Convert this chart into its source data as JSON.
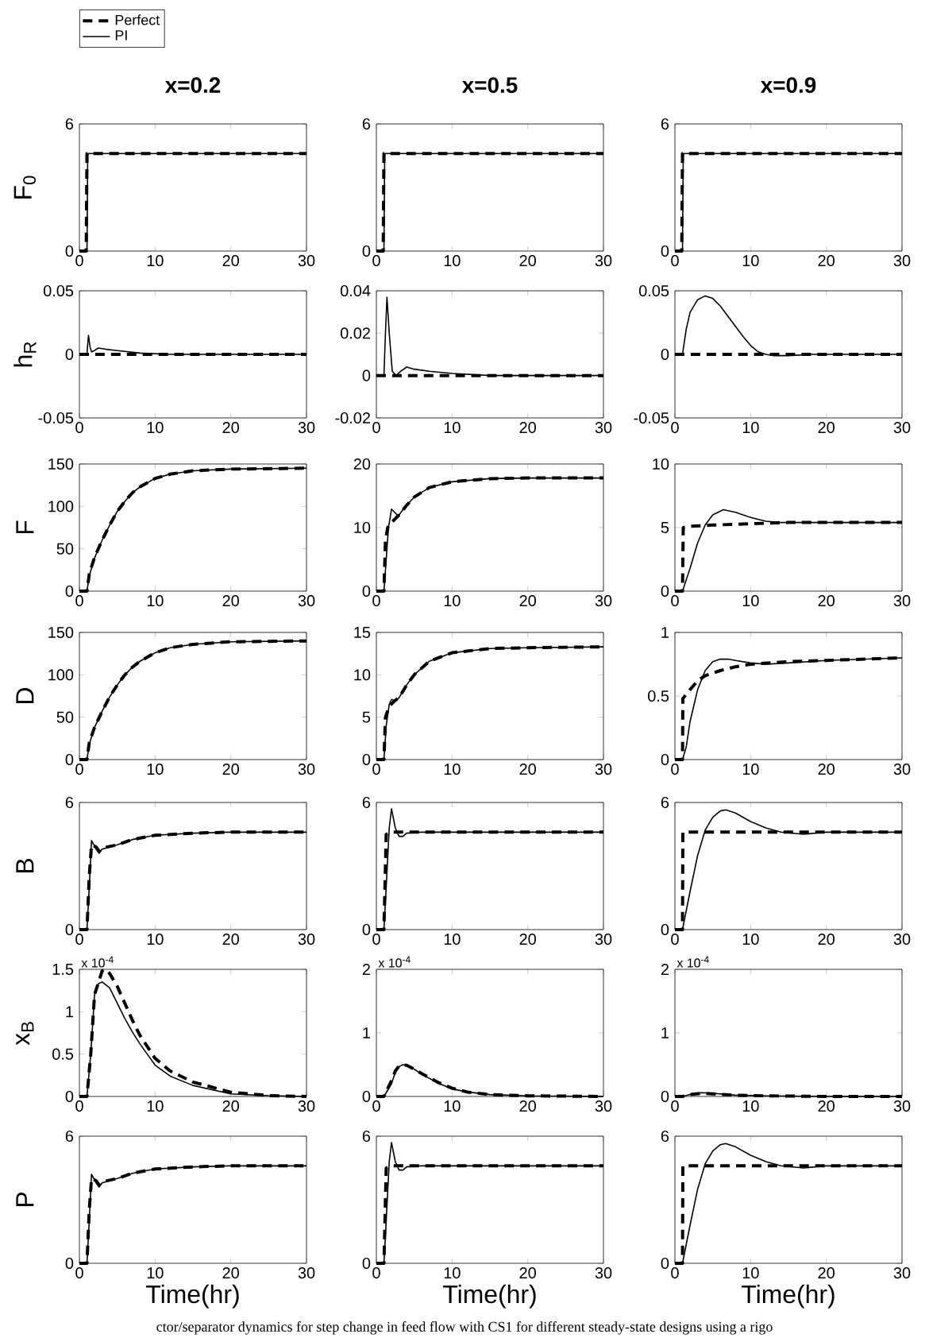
{
  "chart_data": [
    {
      "type": "line",
      "title": "x=0.2",
      "ylabel": "F$_{0}$",
      "xlim": [
        0,
        30
      ],
      "xticks": [
        0,
        10,
        20,
        30
      ],
      "ylim": [
        0,
        6
      ],
      "yticks": [
        0,
        6
      ],
      "legend": "top left",
      "series": [
        {
          "name": "Perfect",
          "color": "#000000",
          "line_style": "dashed",
          "x": [
            0,
            0.9,
            1,
            30
          ],
          "values": [
            0,
            0,
            4.6,
            4.6
          ]
        },
        {
          "name": "PI",
          "color": "#000000",
          "line_style": "solid",
          "x": [
            0,
            1,
            1.1,
            30
          ],
          "values": [
            0,
            0,
            4.6,
            4.6
          ]
        }
      ]
    },
    {
      "type": "line",
      "title": "x=0.5",
      "xlim": [
        0,
        30
      ],
      "xticks": [
        0,
        10,
        20,
        30
      ],
      "ylim": [
        0,
        6
      ],
      "yticks": [
        0,
        6
      ],
      "series": [
        {
          "color": "#000000",
          "line_style": "dashed",
          "x": [
            0,
            0.9,
            1,
            30
          ],
          "values": [
            0,
            0,
            4.6,
            4.6
          ]
        },
        {
          "color": "#000000",
          "line_style": "solid",
          "x": [
            0,
            1,
            1.1,
            30
          ],
          "values": [
            0,
            0,
            4.6,
            4.6
          ]
        }
      ]
    },
    {
      "type": "line",
      "title": "x=0.9",
      "xlim": [
        0,
        30
      ],
      "xticks": [
        0,
        10,
        20,
        30
      ],
      "ylim": [
        0,
        6
      ],
      "yticks": [
        0,
        6
      ],
      "series": [
        {
          "color": "#000000",
          "line_style": "dashed",
          "x": [
            0,
            0.9,
            1,
            30
          ],
          "values": [
            0,
            0,
            4.6,
            4.6
          ]
        },
        {
          "color": "#000000",
          "line_style": "solid",
          "x": [
            0,
            1,
            1.1,
            30
          ],
          "values": [
            0,
            0,
            4.6,
            4.6
          ]
        }
      ]
    },
    {
      "type": "line",
      "ylabel": "h$_{R}$",
      "xlim": [
        0,
        30
      ],
      "xticks": [
        0,
        10,
        20,
        30
      ],
      "ylim": [
        -0.05,
        0.05
      ],
      "yticks": [
        -0.05,
        0,
        0.05
      ],
      "series": [
        {
          "color": "#000000",
          "line_style": "dashed",
          "x": [
            0,
            30
          ],
          "values": [
            0,
            0
          ]
        },
        {
          "color": "#000000",
          "line_style": "solid",
          "x": [
            0,
            1,
            1.1,
            1.2,
            1.4,
            1.6,
            2,
            2.5,
            3.5,
            5,
            8,
            12,
            30
          ],
          "values": [
            0,
            0,
            0.008,
            0.015,
            0.006,
            0.002,
            0.003,
            0.005,
            0.004,
            0.003,
            0.001,
            0,
            0
          ]
        }
      ]
    },
    {
      "type": "line",
      "xlim": [
        0,
        30
      ],
      "xticks": [
        0,
        10,
        20,
        30
      ],
      "ylim": [
        -0.02,
        0.04
      ],
      "yticks": [
        -0.02,
        0,
        0.02,
        0.04
      ],
      "series": [
        {
          "color": "#000000",
          "line_style": "dashed",
          "x": [
            0,
            30
          ],
          "values": [
            0,
            0
          ]
        },
        {
          "color": "#000000",
          "line_style": "solid",
          "x": [
            0,
            1,
            1.2,
            1.4,
            1.7,
            2.1,
            2.6,
            3.2,
            4,
            5,
            7,
            10,
            15,
            30
          ],
          "values": [
            0,
            0,
            0.02,
            0.037,
            0.02,
            0.002,
            0,
            0.002,
            0.004,
            0.003,
            0.002,
            0.001,
            0,
            0
          ]
        }
      ]
    },
    {
      "type": "line",
      "xlim": [
        0,
        30
      ],
      "xticks": [
        0,
        10,
        20,
        30
      ],
      "ylim": [
        -0.05,
        0.05
      ],
      "yticks": [
        -0.05,
        0,
        0.05
      ],
      "series": [
        {
          "color": "#000000",
          "line_style": "dashed",
          "x": [
            0,
            30
          ],
          "values": [
            0,
            0
          ]
        },
        {
          "color": "#000000",
          "line_style": "solid",
          "x": [
            0,
            1,
            1.5,
            2,
            3,
            4,
            5,
            6,
            7,
            8,
            9,
            10,
            11,
            12,
            13,
            15,
            18,
            30
          ],
          "values": [
            0,
            0,
            0.02,
            0.033,
            0.043,
            0.046,
            0.044,
            0.038,
            0.03,
            0.022,
            0.014,
            0.007,
            0.002,
            0,
            -0.001,
            -0.001,
            0,
            0
          ]
        }
      ]
    },
    {
      "type": "line",
      "ylabel": "F",
      "xlim": [
        0,
        30
      ],
      "xticks": [
        0,
        10,
        20,
        30
      ],
      "ylim": [
        0,
        150
      ],
      "yticks": [
        0,
        50,
        100,
        150
      ],
      "series": [
        {
          "color": "#000000",
          "line_style": "dashed",
          "x": [
            0,
            1,
            1.3,
            2,
            3,
            4,
            5,
            6,
            7,
            8,
            10,
            12,
            15,
            20,
            30
          ],
          "values": [
            0,
            0,
            20,
            40,
            60,
            78,
            94,
            106,
            116,
            123,
            133,
            138,
            142,
            144,
            145
          ]
        },
        {
          "color": "#000000",
          "line_style": "solid",
          "x": [
            0,
            1,
            1.3,
            2,
            3,
            4,
            5,
            6,
            7,
            8,
            10,
            12,
            15,
            20,
            30
          ],
          "values": [
            0,
            0,
            18,
            39,
            60,
            78,
            94,
            106,
            116,
            123,
            133,
            138,
            142,
            144,
            145
          ]
        }
      ]
    },
    {
      "type": "line",
      "xlim": [
        0,
        30
      ],
      "xticks": [
        0,
        10,
        20,
        30
      ],
      "ylim": [
        0,
        20
      ],
      "yticks": [
        0,
        10,
        20
      ],
      "series": [
        {
          "color": "#000000",
          "line_style": "dashed",
          "x": [
            0,
            1,
            1.2,
            1.5,
            2,
            3,
            4,
            5,
            7,
            10,
            15,
            20,
            30
          ],
          "values": [
            0,
            0,
            8,
            10,
            10.8,
            12,
            13.5,
            14.8,
            16.3,
            17.2,
            17.7,
            17.8,
            17.8
          ]
        },
        {
          "color": "#000000",
          "line_style": "solid",
          "x": [
            0,
            1,
            1.3,
            1.6,
            2,
            2.9,
            3.5,
            5,
            7,
            10,
            15,
            20,
            30
          ],
          "values": [
            0,
            0,
            5,
            10,
            12.9,
            11.8,
            12.8,
            14.8,
            16.3,
            17.2,
            17.7,
            17.8,
            17.8
          ]
        }
      ]
    },
    {
      "type": "line",
      "xlim": [
        0,
        30
      ],
      "xticks": [
        0,
        10,
        20,
        30
      ],
      "ylim": [
        0,
        10
      ],
      "yticks": [
        0,
        5,
        10
      ],
      "series": [
        {
          "color": "#000000",
          "line_style": "dashed",
          "x": [
            0,
            1,
            1.1,
            2,
            5,
            10,
            15,
            30
          ],
          "values": [
            0,
            0,
            5,
            5.1,
            5.2,
            5.3,
            5.4,
            5.4
          ]
        },
        {
          "color": "#000000",
          "line_style": "solid",
          "x": [
            0,
            1,
            2,
            3,
            4,
            5,
            6.4,
            8,
            10,
            12,
            14,
            30
          ],
          "values": [
            0,
            0,
            1.8,
            3.8,
            5.2,
            6,
            6.4,
            6.2,
            5.8,
            5.5,
            5.4,
            5.4
          ]
        }
      ]
    },
    {
      "type": "line",
      "ylabel": "D",
      "xlim": [
        0,
        30
      ],
      "xticks": [
        0,
        10,
        20,
        30
      ],
      "ylim": [
        0,
        150
      ],
      "yticks": [
        0,
        50,
        100,
        150
      ],
      "series": [
        {
          "color": "#000000",
          "line_style": "dashed",
          "x": [
            0,
            1,
            1.3,
            2,
            3,
            4,
            5,
            6,
            7,
            8,
            10,
            12,
            15,
            20,
            30
          ],
          "values": [
            0,
            0,
            20,
            38,
            57,
            74,
            88,
            100,
            109,
            116,
            126,
            132,
            136,
            139,
            140
          ]
        },
        {
          "color": "#000000",
          "line_style": "solid",
          "x": [
            0,
            1,
            1.3,
            2,
            3,
            4,
            5,
            6,
            7,
            8,
            10,
            12,
            15,
            20,
            30
          ],
          "values": [
            0,
            0,
            18,
            38,
            57,
            74,
            88,
            100,
            109,
            116,
            126,
            132,
            136,
            139,
            140
          ]
        }
      ]
    },
    {
      "type": "line",
      "xlim": [
        0,
        30
      ],
      "xticks": [
        0,
        10,
        20,
        30
      ],
      "ylim": [
        0,
        15
      ],
      "yticks": [
        0,
        5,
        10,
        15
      ],
      "series": [
        {
          "color": "#000000",
          "line_style": "dashed",
          "x": [
            0,
            1,
            1.2,
            1.7,
            2.5,
            3,
            4,
            5,
            7,
            10,
            15,
            20,
            30
          ],
          "values": [
            0,
            0,
            5,
            6.3,
            7,
            7.3,
            8.8,
            10,
            11.6,
            12.6,
            13.1,
            13.2,
            13.3
          ]
        },
        {
          "color": "#000000",
          "line_style": "solid",
          "x": [
            0,
            1,
            1.3,
            1.7,
            2,
            2.5,
            3,
            4,
            5,
            7,
            10,
            15,
            20,
            30
          ],
          "values": [
            0,
            0,
            4,
            6.5,
            7.1,
            6.9,
            7.3,
            8.8,
            10,
            11.6,
            12.6,
            13.1,
            13.2,
            13.3
          ]
        }
      ]
    },
    {
      "type": "line",
      "xlim": [
        0,
        30
      ],
      "xticks": [
        0,
        10,
        20,
        30
      ],
      "ylim": [
        0,
        1
      ],
      "yticks": [
        0,
        0.5,
        1
      ],
      "series": [
        {
          "color": "#000000",
          "line_style": "dashed",
          "x": [
            0,
            1,
            1.05,
            2,
            3,
            4,
            6,
            8,
            10,
            15,
            20,
            30
          ],
          "values": [
            0,
            0,
            0.48,
            0.55,
            0.62,
            0.66,
            0.7,
            0.73,
            0.75,
            0.77,
            0.78,
            0.8
          ]
        },
        {
          "color": "#000000",
          "line_style": "solid",
          "x": [
            0,
            1,
            1.5,
            2,
            3,
            4,
            5,
            6,
            7,
            8,
            10,
            12,
            15,
            20,
            30
          ],
          "values": [
            0,
            0,
            0.1,
            0.3,
            0.55,
            0.7,
            0.77,
            0.79,
            0.79,
            0.78,
            0.76,
            0.75,
            0.76,
            0.78,
            0.8
          ]
        }
      ]
    },
    {
      "type": "line",
      "ylabel": "B",
      "xlim": [
        0,
        30
      ],
      "xticks": [
        0,
        10,
        20,
        30
      ],
      "ylim": [
        0,
        6
      ],
      "yticks": [
        0,
        6
      ],
      "series": [
        {
          "color": "#000000",
          "line_style": "dashed",
          "x": [
            0,
            1,
            1.3,
            1.6,
            2.2,
            2.6,
            3,
            5,
            7,
            10,
            15,
            20,
            30
          ],
          "values": [
            0,
            0,
            2.5,
            4,
            3.9,
            3.7,
            3.85,
            4,
            4.25,
            4.45,
            4.55,
            4.6,
            4.6
          ]
        },
        {
          "color": "#000000",
          "line_style": "solid",
          "x": [
            0,
            1,
            1.3,
            1.6,
            2.2,
            2.6,
            3,
            5,
            7,
            10,
            15,
            20,
            30
          ],
          "values": [
            0,
            0,
            2,
            4.2,
            3.8,
            3.6,
            3.8,
            4,
            4.25,
            4.45,
            4.55,
            4.6,
            4.6
          ]
        }
      ]
    },
    {
      "type": "line",
      "xlim": [
        0,
        30
      ],
      "xticks": [
        0,
        10,
        20,
        30
      ],
      "ylim": [
        0,
        6
      ],
      "yticks": [
        0,
        6
      ],
      "series": [
        {
          "color": "#000000",
          "line_style": "dashed",
          "x": [
            0,
            1,
            1.3,
            2,
            30
          ],
          "values": [
            0,
            0,
            4.5,
            4.6,
            4.6
          ]
        },
        {
          "color": "#000000",
          "line_style": "solid",
          "x": [
            0,
            1,
            1.3,
            1.7,
            2,
            2.5,
            3,
            3.5,
            4,
            6,
            30
          ],
          "values": [
            0,
            0,
            2,
            4.8,
            5.7,
            4.8,
            4.4,
            4.4,
            4.55,
            4.6,
            4.6
          ]
        }
      ]
    },
    {
      "type": "line",
      "xlim": [
        0,
        30
      ],
      "xticks": [
        0,
        10,
        20,
        30
      ],
      "ylim": [
        0,
        6
      ],
      "yticks": [
        0,
        6
      ],
      "series": [
        {
          "color": "#000000",
          "line_style": "dashed",
          "x": [
            0,
            1,
            1.05,
            30
          ],
          "values": [
            0,
            0,
            4.6,
            4.6
          ]
        },
        {
          "color": "#000000",
          "line_style": "solid",
          "x": [
            0,
            1,
            2,
            3,
            4,
            5,
            6,
            6.7,
            8,
            10,
            12,
            14,
            17,
            20,
            30
          ],
          "values": [
            0,
            0,
            1.8,
            3.5,
            4.7,
            5.3,
            5.6,
            5.65,
            5.5,
            5.1,
            4.8,
            4.6,
            4.5,
            4.6,
            4.6
          ]
        }
      ]
    },
    {
      "type": "line",
      "ylabel": "x$_{B}$",
      "xlim": [
        0,
        30
      ],
      "xticks": [
        0,
        10,
        20,
        30
      ],
      "ylim": [
        0,
        1.5
      ],
      "yticks": [
        0,
        0.5,
        1,
        1.5
      ],
      "annotations": [
        "x 10$^{-4}$"
      ],
      "series": [
        {
          "color": "#000000",
          "line_style": "dashed",
          "x": [
            0,
            1,
            1.5,
            2,
            3,
            3.5,
            4,
            5,
            6,
            7,
            8,
            10,
            12,
            15,
            20,
            25,
            30
          ],
          "values": [
            0,
            0,
            0.5,
            1.2,
            1.48,
            1.5,
            1.45,
            1.3,
            1.1,
            0.9,
            0.72,
            0.45,
            0.3,
            0.17,
            0.05,
            0.01,
            0
          ]
        },
        {
          "color": "#000000",
          "line_style": "solid",
          "x": [
            0,
            1,
            1.5,
            2,
            2.5,
            3,
            4,
            5,
            6,
            7,
            8,
            10,
            12,
            15,
            20,
            25,
            30
          ],
          "values": [
            0,
            0,
            0.5,
            1.2,
            1.33,
            1.35,
            1.28,
            1.1,
            0.92,
            0.76,
            0.62,
            0.37,
            0.24,
            0.13,
            0.03,
            0.01,
            0
          ]
        }
      ]
    },
    {
      "type": "line",
      "xlim": [
        0,
        30
      ],
      "xticks": [
        0,
        10,
        20,
        30
      ],
      "ylim": [
        0,
        2
      ],
      "yticks": [
        0,
        1,
        2
      ],
      "annotations": [
        "x 10$^{-4}$"
      ],
      "series": [
        {
          "color": "#000000",
          "line_style": "dashed",
          "x": [
            0,
            1,
            2,
            2.5,
            3,
            3.5,
            4,
            5,
            6,
            8,
            10,
            12,
            15,
            20,
            30
          ],
          "values": [
            0,
            0,
            0.25,
            0.4,
            0.48,
            0.5,
            0.49,
            0.43,
            0.36,
            0.23,
            0.13,
            0.07,
            0.03,
            0.01,
            0
          ]
        },
        {
          "color": "#000000",
          "line_style": "solid",
          "x": [
            0,
            1,
            2,
            2.5,
            3,
            3.5,
            4,
            5,
            6,
            8,
            10,
            12,
            15,
            20,
            30
          ],
          "values": [
            0,
            0,
            0.2,
            0.38,
            0.47,
            0.5,
            0.49,
            0.43,
            0.35,
            0.22,
            0.12,
            0.07,
            0.03,
            0.01,
            0
          ]
        }
      ]
    },
    {
      "type": "line",
      "xlim": [
        0,
        30
      ],
      "xticks": [
        0,
        10,
        20,
        30
      ],
      "ylim": [
        0,
        2
      ],
      "yticks": [
        0,
        1,
        2
      ],
      "annotations": [
        "x 10$^{-4}$"
      ],
      "series": [
        {
          "color": "#000000",
          "line_style": "dashed",
          "x": [
            0,
            1,
            2,
            3.5,
            5,
            8,
            12,
            20,
            30
          ],
          "values": [
            0,
            0,
            0.03,
            0.05,
            0.04,
            0.02,
            0.01,
            0,
            0
          ]
        },
        {
          "color": "#000000",
          "line_style": "solid",
          "x": [
            0,
            1,
            2,
            3.5,
            5,
            8,
            12,
            20,
            30
          ],
          "values": [
            0,
            0,
            0.03,
            0.06,
            0.05,
            0.02,
            0.01,
            0,
            0
          ]
        }
      ]
    },
    {
      "type": "line",
      "ylabel": "P",
      "xlabel": "Time(hr)",
      "xlim": [
        0,
        30
      ],
      "xticks": [
        0,
        10,
        20,
        30
      ],
      "ylim": [
        0,
        6
      ],
      "yticks": [
        0,
        6
      ],
      "series": [
        {
          "color": "#000000",
          "line_style": "dashed",
          "x": [
            0,
            1,
            1.3,
            1.6,
            2.2,
            2.6,
            3,
            5,
            7,
            10,
            15,
            20,
            30
          ],
          "values": [
            0,
            0,
            2.5,
            4,
            3.9,
            3.7,
            3.85,
            4,
            4.25,
            4.45,
            4.55,
            4.6,
            4.6
          ]
        },
        {
          "color": "#000000",
          "line_style": "solid",
          "x": [
            0,
            1,
            1.3,
            1.6,
            2.2,
            2.6,
            3,
            5,
            7,
            10,
            15,
            20,
            30
          ],
          "values": [
            0,
            0,
            2,
            4.2,
            3.8,
            3.6,
            3.8,
            4,
            4.25,
            4.45,
            4.55,
            4.6,
            4.6
          ]
        }
      ]
    },
    {
      "type": "line",
      "xlabel": "Time(hr)",
      "xlim": [
        0,
        30
      ],
      "xticks": [
        0,
        10,
        20,
        30
      ],
      "ylim": [
        0,
        6
      ],
      "yticks": [
        0,
        6
      ],
      "series": [
        {
          "color": "#000000",
          "line_style": "dashed",
          "x": [
            0,
            1,
            1.3,
            2,
            30
          ],
          "values": [
            0,
            0,
            4.5,
            4.6,
            4.6
          ]
        },
        {
          "color": "#000000",
          "line_style": "solid",
          "x": [
            0,
            1,
            1.3,
            1.7,
            2,
            2.5,
            3,
            3.5,
            4,
            6,
            30
          ],
          "values": [
            0,
            0,
            2,
            4.8,
            5.7,
            4.8,
            4.4,
            4.4,
            4.55,
            4.6,
            4.6
          ]
        }
      ]
    },
    {
      "type": "line",
      "xlabel": "Time(hr)",
      "xlim": [
        0,
        30
      ],
      "xticks": [
        0,
        10,
        20,
        30
      ],
      "ylim": [
        0,
        6
      ],
      "yticks": [
        0,
        6
      ],
      "annotations": [
        "ctor/separator dynamics for step change in feed flow with CS1 for different steady-state designs using a rigo"
      ],
      "series": [
        {
          "color": "#000000",
          "line_style": "dashed",
          "x": [
            0,
            1,
            1.05,
            30
          ],
          "values": [
            0,
            0,
            4.6,
            4.6
          ]
        },
        {
          "color": "#000000",
          "line_style": "solid",
          "x": [
            0,
            1,
            2,
            3,
            4,
            5,
            6,
            6.7,
            8,
            10,
            12,
            14,
            17,
            20,
            30
          ],
          "values": [
            0,
            0,
            1.8,
            3.5,
            4.7,
            5.3,
            5.6,
            5.65,
            5.5,
            5.1,
            4.8,
            4.6,
            4.5,
            4.6,
            4.6
          ]
        }
      ]
    }
  ]
}
